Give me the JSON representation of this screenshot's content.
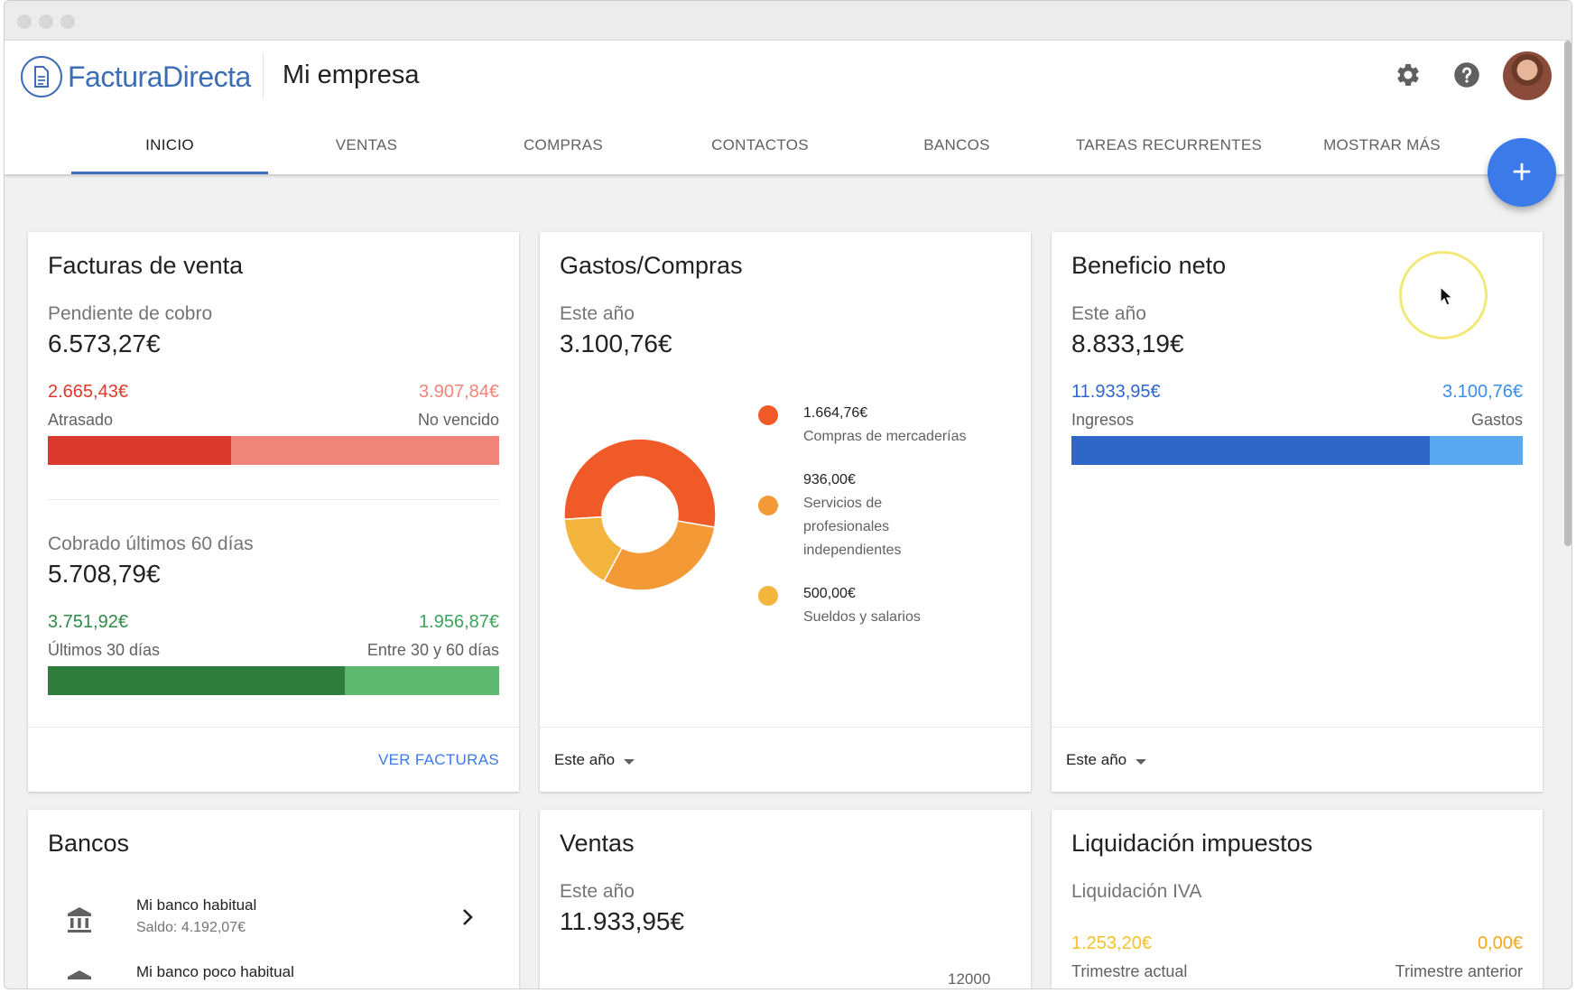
{
  "app": {
    "name": "FacturaDirecta",
    "company": "Mi empresa"
  },
  "tabs": [
    {
      "label": "INICIO",
      "active": true
    },
    {
      "label": "VENTAS"
    },
    {
      "label": "COMPRAS"
    },
    {
      "label": "CONTACTOS"
    },
    {
      "label": "BANCOS"
    },
    {
      "label": "TAREAS RECURRENTES"
    },
    {
      "label": "MOSTRAR MÁS"
    }
  ],
  "fab": {
    "label": "+"
  },
  "icons": {
    "settings": "gear-icon",
    "help": "help-icon",
    "avatar": "user-avatar",
    "bank": "bank-icon",
    "chevron": "chevron-right-icon"
  },
  "colors": {
    "accent": "#3b7ae8",
    "overdue": "#d93a2b",
    "not_due": "#ef857a",
    "green_dark": "#2e7d3b",
    "green_light": "#5eb86f",
    "blue_dark": "#2f67c9",
    "blue_light": "#5aa8f0",
    "donut_1": "#f05a28",
    "donut_2": "#f39a37",
    "donut_3": "#f3b53d",
    "tax_yellow": "#f6c02c"
  },
  "sales_invoices": {
    "title": "Facturas de venta",
    "pending_label": "Pendiente de cobro",
    "pending_value": "6.573,27€",
    "overdue_amount": "2.665,43€",
    "overdue_label": "Atrasado",
    "not_due_amount": "3.907,84€",
    "not_due_label": "No vencido",
    "overdue_fraction": 0.405,
    "collected_label": "Cobrado últimos 60 días",
    "collected_value": "5.708,79€",
    "last30_amount": "3.751,92€",
    "last30_label": "Últimos 30 días",
    "between_amount": "1.956,87€",
    "between_label": "Entre 30 y 60 días",
    "last30_fraction": 0.657,
    "footer_link": "VER FACTURAS"
  },
  "expenses": {
    "title": "Gastos/Compras",
    "period_label": "Este año",
    "total": "3.100,76€",
    "legend": [
      {
        "value": "1.664,76€",
        "label": "Compras de mercaderías"
      },
      {
        "value": "936,00€",
        "label": "Servicios de profesionales independientes"
      },
      {
        "value": "500,00€",
        "label": "Sueldos y salarios"
      }
    ],
    "footer_select": "Este año"
  },
  "profit": {
    "title": "Beneficio neto",
    "period_label": "Este año",
    "total": "8.833,19€",
    "income_amount": "11.933,95€",
    "income_label": "Ingresos",
    "expense_amount": "3.100,76€",
    "expense_label": "Gastos",
    "income_fraction": 0.794,
    "footer_select": "Este año"
  },
  "banks": {
    "title": "Bancos",
    "items": [
      {
        "name": "Mi banco habitual",
        "balance": "Saldo: 4.192,07€"
      },
      {
        "name": "Mi banco poco habitual"
      }
    ]
  },
  "sales": {
    "title": "Ventas",
    "period_label": "Este año",
    "total": "11.933,95€",
    "axis_partial": "12000"
  },
  "taxes": {
    "title": "Liquidación impuestos",
    "subtitle": "Liquidación IVA",
    "current_amount": "1.253,20€",
    "current_label": "Trimestre actual",
    "previous_amount": "0,00€",
    "previous_label": "Trimestre anterior"
  },
  "chart_data": {
    "type": "pie",
    "title": "",
    "categories": [
      "Compras de mercaderías",
      "Servicios de profesionales independientes",
      "Sueldos y salarios"
    ],
    "values": [
      1664.76,
      936.0,
      500.0
    ],
    "donut": true
  }
}
